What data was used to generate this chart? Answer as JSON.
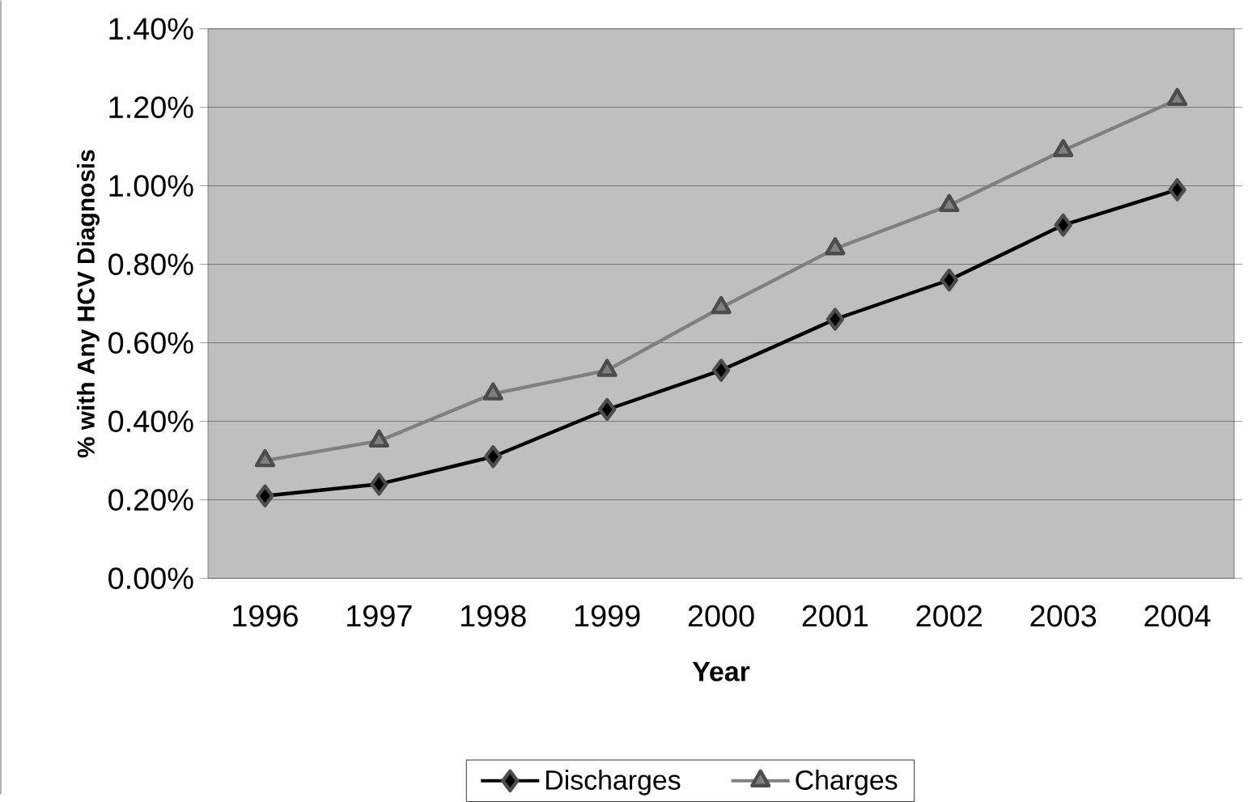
{
  "chart_data": {
    "type": "line",
    "xlabel": "Year",
    "ylabel": "% with Any HCV Diagnosis",
    "categories": [
      "1996",
      "1997",
      "1998",
      "1999",
      "2000",
      "2001",
      "2002",
      "2003",
      "2004"
    ],
    "series": [
      {
        "name": "Discharges",
        "color": "#000000",
        "marker": "diamond",
        "values": [
          0.21,
          0.24,
          0.31,
          0.43,
          0.53,
          0.66,
          0.76,
          0.9,
          0.99
        ]
      },
      {
        "name": "Charges",
        "color": "#808080",
        "marker": "triangle",
        "values": [
          0.3,
          0.35,
          0.47,
          0.53,
          0.69,
          0.84,
          0.95,
          1.09,
          1.22
        ]
      }
    ],
    "ylim": [
      0,
      1.4
    ],
    "yticks": [
      {
        "value": 0,
        "label": "0.00%"
      },
      {
        "value": 0.2,
        "label": "0.20%"
      },
      {
        "value": 0.4,
        "label": "0.40%"
      },
      {
        "value": 0.6,
        "label": "0.60%"
      },
      {
        "value": 0.8,
        "label": "0.80%"
      },
      {
        "value": 1.0,
        "label": "1.00%"
      },
      {
        "value": 1.2,
        "label": "1.20%"
      },
      {
        "value": 1.4,
        "label": "1.40%"
      }
    ],
    "grid": "y",
    "legend": "bottom",
    "line_style": "solid"
  }
}
